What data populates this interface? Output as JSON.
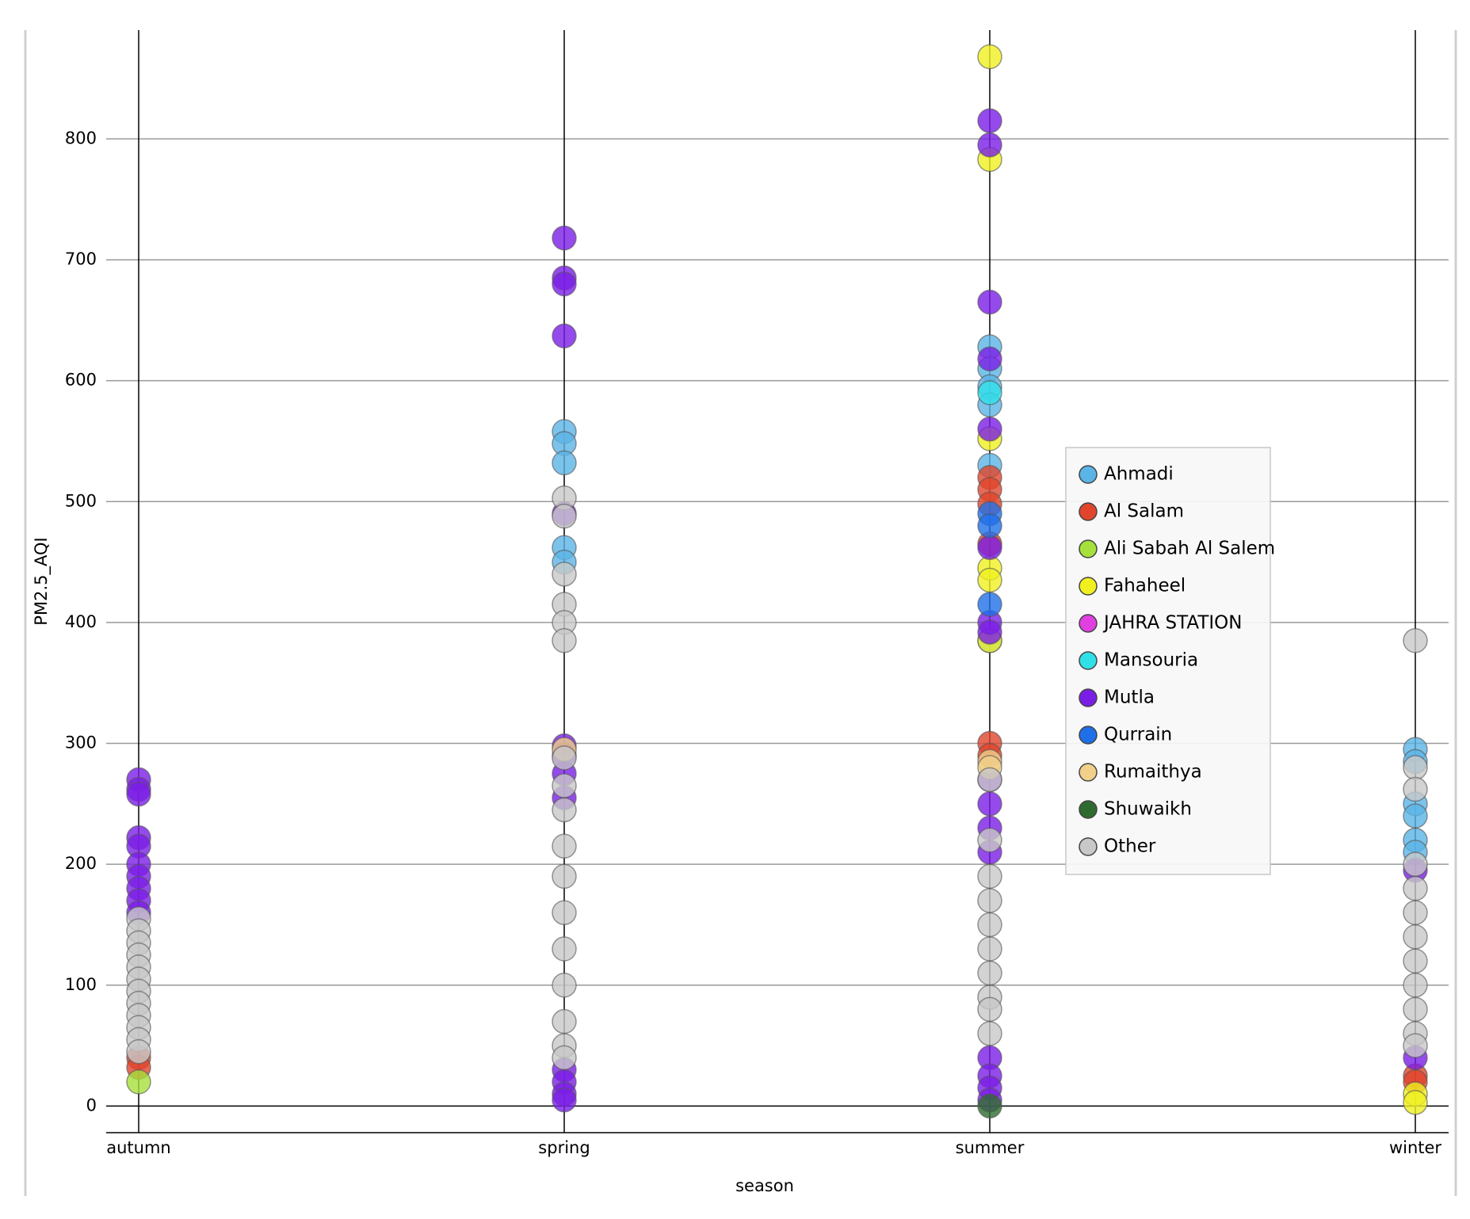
{
  "chart_data": {
    "type": "scatter",
    "x_label": "season",
    "y_label": "PM2.5_AQI",
    "categories": [
      "autumn",
      "spring",
      "summer",
      "winter"
    ],
    "ylim": [
      -22,
      890
    ],
    "yticks": [
      0,
      100,
      200,
      300,
      400,
      500,
      600,
      700,
      800
    ],
    "grid": true,
    "legend": "right",
    "series": [
      {
        "name": "Ahmadi",
        "color": "#5bb4e6",
        "x": [
          "spring",
          "spring",
          "spring",
          "spring",
          "spring",
          "summer",
          "summer",
          "summer",
          "summer",
          "summer",
          "summer",
          "winter",
          "winter",
          "winter",
          "winter",
          "winter",
          "winter"
        ],
        "values": [
          558,
          548,
          532,
          462,
          450,
          628,
          610,
          595,
          580,
          530,
          385,
          295,
          285,
          250,
          240,
          220,
          210
        ]
      },
      {
        "name": "Al Salam",
        "color": "#e0452c",
        "x": [
          "autumn",
          "autumn",
          "summer",
          "summer",
          "summer",
          "summer",
          "summer",
          "summer",
          "winter",
          "winter"
        ],
        "values": [
          40,
          32,
          520,
          510,
          498,
          465,
          300,
          290,
          25,
          20
        ]
      },
      {
        "name": "Ali Sabah Al Salem",
        "color": "#a6e03c",
        "x": [
          "autumn"
        ],
        "values": [
          20
        ]
      },
      {
        "name": "Fahaheel",
        "color": "#f0f020",
        "x": [
          "summer",
          "summer",
          "summer",
          "summer",
          "summer",
          "summer",
          "winter",
          "winter"
        ],
        "values": [
          868,
          783,
          552,
          445,
          435,
          385,
          10,
          3
        ]
      },
      {
        "name": "JAHRA STATION",
        "color": "#e040e0",
        "x": [],
        "values": []
      },
      {
        "name": "Mansouria",
        "color": "#30e0e8",
        "x": [
          "summer"
        ],
        "values": [
          590
        ]
      },
      {
        "name": "Mutla",
        "color": "#7a1ee6",
        "x": [
          "autumn",
          "autumn",
          "autumn",
          "autumn",
          "autumn",
          "autumn",
          "autumn",
          "autumn",
          "autumn",
          "autumn",
          "spring",
          "spring",
          "spring",
          "spring",
          "spring",
          "spring",
          "spring",
          "spring",
          "spring",
          "spring",
          "spring",
          "spring",
          "spring",
          "summer",
          "summer",
          "summer",
          "summer",
          "summer",
          "summer",
          "summer",
          "summer",
          "summer",
          "summer",
          "summer",
          "summer",
          "summer",
          "summer",
          "summer",
          "summer",
          "winter",
          "winter"
        ],
        "values": [
          270,
          262,
          258,
          222,
          215,
          200,
          190,
          180,
          170,
          160,
          718,
          685,
          680,
          637,
          490,
          298,
          290,
          275,
          255,
          30,
          20,
          10,
          5,
          815,
          795,
          665,
          618,
          560,
          462,
          400,
          392,
          270,
          250,
          230,
          210,
          40,
          25,
          15,
          5,
          195,
          40
        ]
      },
      {
        "name": "Qurrain",
        "color": "#1f6fe8",
        "x": [
          "summer",
          "summer",
          "summer"
        ],
        "values": [
          490,
          480,
          415
        ]
      },
      {
        "name": "Rumaithya",
        "color": "#f0d08a",
        "x": [
          "spring",
          "summer",
          "summer"
        ],
        "values": [
          295,
          285,
          280
        ]
      },
      {
        "name": "Shuwaikh",
        "color": "#2e6b2e",
        "x": [
          "summer"
        ],
        "values": [
          0
        ]
      },
      {
        "name": "Other",
        "color": "#c8c8c8",
        "x": [
          "autumn",
          "autumn",
          "autumn",
          "autumn",
          "autumn",
          "autumn",
          "autumn",
          "autumn",
          "autumn",
          "autumn",
          "autumn",
          "autumn",
          "spring",
          "spring",
          "spring",
          "spring",
          "spring",
          "spring",
          "spring",
          "spring",
          "spring",
          "spring",
          "spring",
          "spring",
          "spring",
          "spring",
          "spring",
          "spring",
          "spring",
          "summer",
          "summer",
          "summer",
          "summer",
          "summer",
          "summer",
          "summer",
          "summer",
          "summer",
          "summer",
          "winter",
          "winter",
          "winter",
          "winter",
          "winter",
          "winter",
          "winter",
          "winter",
          "winter",
          "winter",
          "winter",
          "winter"
        ],
        "values": [
          155,
          145,
          135,
          125,
          115,
          105,
          95,
          85,
          75,
          65,
          55,
          45,
          503,
          488,
          440,
          415,
          400,
          385,
          288,
          265,
          245,
          215,
          190,
          160,
          130,
          100,
          70,
          50,
          40,
          270,
          220,
          190,
          170,
          150,
          130,
          110,
          90,
          80,
          60,
          385,
          280,
          262,
          200,
          180,
          160,
          140,
          120,
          100,
          80,
          60,
          50
        ]
      }
    ]
  }
}
